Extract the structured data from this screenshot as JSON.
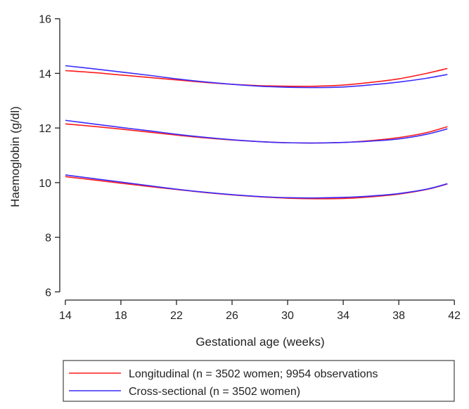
{
  "chart_data": {
    "type": "line",
    "title": "",
    "xlabel": "Gestational age (weeks)",
    "ylabel": "Haemoglobin (g/dl)",
    "xlim": [
      13.6,
      42.8
    ],
    "ylim": [
      5.7,
      16.3
    ],
    "x_ticks": [
      14,
      18,
      22,
      26,
      30,
      34,
      38,
      42
    ],
    "y_ticks": [
      6,
      8,
      10,
      12,
      14,
      16
    ],
    "grid": false,
    "legend_position": "bottom",
    "x": [
      14,
      16,
      18,
      20,
      22,
      24,
      26,
      28,
      30,
      32,
      34,
      36,
      38,
      40,
      41.5
    ],
    "series": [
      {
        "name": "Longitudinal (n = 3502 women; 9954 observations",
        "color": "#ff1a1a",
        "lines": [
          [
            14.1,
            14.03,
            13.94,
            13.85,
            13.76,
            13.67,
            13.6,
            13.55,
            13.53,
            13.53,
            13.57,
            13.67,
            13.8,
            14.0,
            14.18
          ],
          [
            12.15,
            12.06,
            11.96,
            11.85,
            11.74,
            11.64,
            11.56,
            11.5,
            11.46,
            11.45,
            11.47,
            11.54,
            11.65,
            11.83,
            12.05
          ],
          [
            10.22,
            10.1,
            9.98,
            9.86,
            9.75,
            9.64,
            9.55,
            9.48,
            9.43,
            9.41,
            9.42,
            9.48,
            9.58,
            9.75,
            9.95
          ]
        ]
      },
      {
        "name": "Cross-sectional (n = 3502 women)",
        "color": "#3a2bff",
        "lines": [
          [
            14.28,
            14.17,
            14.05,
            13.93,
            13.8,
            13.69,
            13.6,
            13.53,
            13.49,
            13.48,
            13.5,
            13.58,
            13.68,
            13.82,
            13.96
          ],
          [
            12.28,
            12.15,
            12.02,
            11.9,
            11.77,
            11.66,
            11.57,
            11.5,
            11.46,
            11.45,
            11.47,
            11.52,
            11.6,
            11.77,
            11.97
          ],
          [
            10.28,
            10.15,
            10.02,
            9.89,
            9.76,
            9.65,
            9.56,
            9.49,
            9.45,
            9.44,
            9.46,
            9.51,
            9.6,
            9.76,
            9.96
          ]
        ]
      }
    ]
  }
}
